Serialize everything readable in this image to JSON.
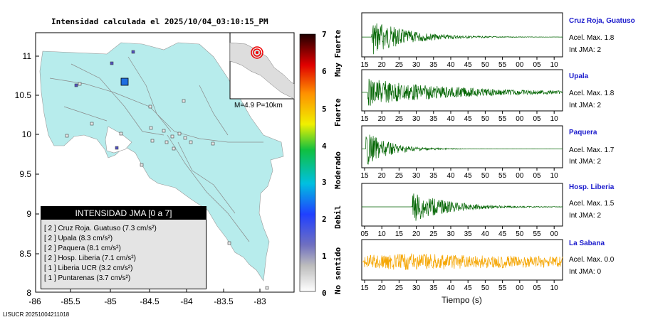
{
  "map": {
    "title": "Intensidad calculada el 2025/10/04_03:10:15_PM",
    "lon_ticks": [
      "-86",
      "-85.5",
      "-85",
      "-84.5",
      "-84",
      "-83.5",
      "-83"
    ],
    "lat_ticks": [
      "11",
      "10.5",
      "10",
      "9.5",
      "9",
      "8.5",
      "8"
    ],
    "magnitude_label": "M=4.9 P=10km",
    "land_color": "#b7ecec",
    "scale_ticks": [
      "7",
      "6",
      "5",
      "4",
      "3",
      "2",
      "1",
      "0"
    ],
    "scale_words": [
      "Muy Fuerte",
      "Fuerte",
      "Moderado",
      "Debil",
      "No sentido"
    ],
    "legend_title": "INTENSIDAD JMA [0 a 7]",
    "legend_rows": [
      "[ 2 ]  Cruz Roja. Guatuso (7.3 cm/s²)",
      "[ 2 ]  Upala (8.3 cm/s²)",
      "[ 2 ]  Paquera (8.1 cm/s²)",
      "[ 2 ]  Hosp. Liberia (7.1 cm/s²)",
      "[ 1 ]  Liberia UCR (3.2 cm/s²)",
      "[ 1 ]  Puntarenas (3.7 cm/s²)"
    ],
    "footer": "LISUCR 20251004211018"
  },
  "stations": [
    {
      "name": "Cruz Roja, Guatuso",
      "acel": "Acel. Max. 1.8",
      "int": "Int JMA: 2",
      "color": "#006400",
      "ticks": [
        "15",
        "20",
        "25",
        "30",
        "35",
        "40",
        "45",
        "50",
        "55",
        "00",
        "05",
        "10"
      ]
    },
    {
      "name": "Upala",
      "acel": "Acel. Max. 1.8",
      "int": "Int JMA: 2",
      "color": "#006400",
      "ticks": [
        "15",
        "20",
        "25",
        "30",
        "35",
        "40",
        "45",
        "50",
        "55",
        "00",
        "05",
        "10"
      ]
    },
    {
      "name": "Paquera",
      "acel": "Acel. Max. 1.7",
      "int": "Int JMA: 2",
      "color": "#006400",
      "ticks": [
        "15",
        "20",
        "25",
        "30",
        "35",
        "40",
        "45",
        "50",
        "55",
        "00",
        "05",
        "10"
      ]
    },
    {
      "name": "Hosp. Liberia",
      "acel": "Acel. Max. 1.5",
      "int": "Int JMA: 2",
      "color": "#006400",
      "ticks": [
        "05",
        "10",
        "15",
        "20",
        "25",
        "30",
        "35",
        "40",
        "45",
        "50",
        "55",
        "00"
      ]
    },
    {
      "name": "La Sabana",
      "acel": "Acel. Max. 0.0",
      "int": "Int JMA: 0",
      "color": "#f5a500",
      "ticks": [
        "15",
        "20",
        "25",
        "30",
        "35",
        "40",
        "45",
        "50",
        "55",
        "00",
        "05",
        "10"
      ]
    }
  ],
  "time_axis_label": "Tiempo (s)"
}
